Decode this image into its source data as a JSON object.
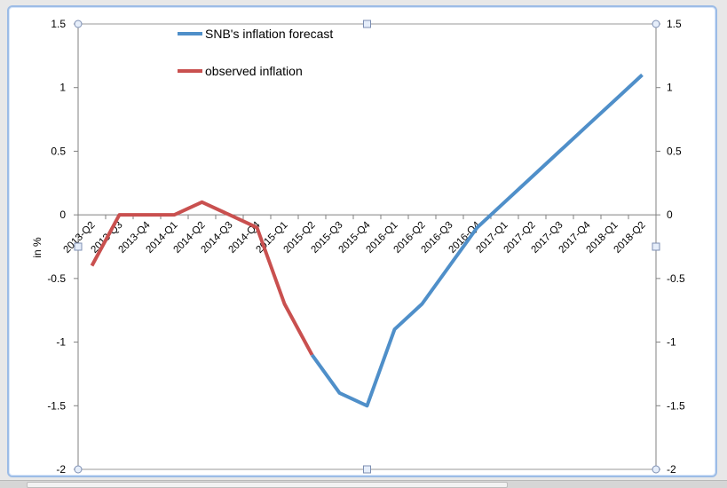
{
  "chart_data": {
    "type": "line",
    "categories": [
      "2013-Q2",
      "2013-Q3",
      "2013-Q4",
      "2014-Q1",
      "2014-Q2",
      "2014-Q3",
      "2014-Q4",
      "2015-Q1",
      "2015-Q2",
      "2015-Q3",
      "2015-Q4",
      "2016-Q1",
      "2016-Q2",
      "2016-Q3",
      "2016-Q4",
      "2017-Q1",
      "2017-Q2",
      "2017-Q3",
      "2017-Q4",
      "2018-Q1",
      "2018-Q2"
    ],
    "series": [
      {
        "name": "SNB's inflation forecast",
        "color": "#4f8fc9",
        "values": [
          null,
          null,
          null,
          null,
          null,
          null,
          null,
          null,
          -1.1,
          -1.4,
          -1.5,
          -0.9,
          -0.7,
          -0.4,
          -0.1,
          0.1,
          0.3,
          0.5,
          0.7,
          0.9,
          1.1
        ]
      },
      {
        "name": "observed inflation",
        "color": "#c9504f",
        "values": [
          -0.4,
          0.0,
          0.0,
          0.0,
          0.1,
          0.0,
          -0.1,
          -0.7,
          -1.1,
          null,
          null,
          null,
          null,
          null,
          null,
          null,
          null,
          null,
          null,
          null,
          null
        ]
      }
    ],
    "ylabel": "in %",
    "ylim": [
      -2,
      1.5
    ],
    "yticks": [
      1.5,
      1,
      0.5,
      0,
      -0.5,
      -1,
      -1.5,
      -2
    ],
    "ytick_labels": [
      "1.5",
      "1",
      "0.5",
      "0",
      "-0.5",
      "-1",
      "-1.5",
      "-2"
    ],
    "secondary_yticks": [
      1.5,
      1,
      0.5,
      0,
      -0.5,
      -1,
      -1.5,
      -2
    ],
    "secondary_ytick_labels": [
      "1.5",
      "1",
      "0.5",
      "0",
      "-0.5",
      "-1",
      "-1.5",
      "-2"
    ],
    "grid": false,
    "legend_position": "top-center"
  }
}
